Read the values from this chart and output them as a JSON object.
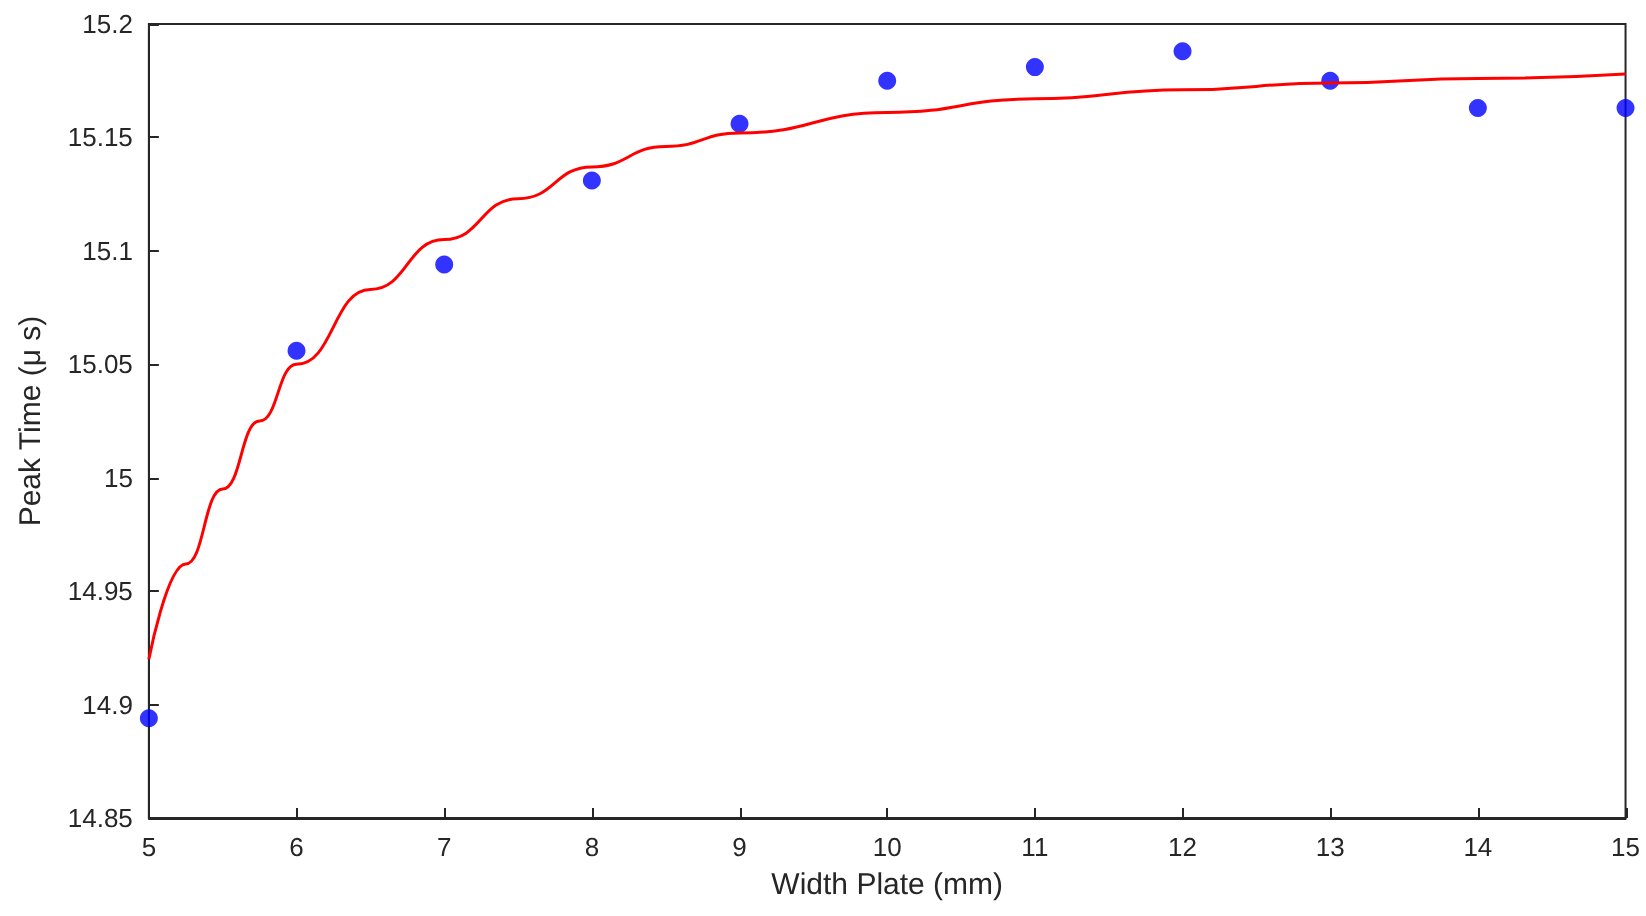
{
  "chart_data": {
    "type": "scatter",
    "xlabel": "Width Plate (mm)",
    "ylabel": "Peak Time (μ s)",
    "xlim": [
      5,
      15
    ],
    "xticks": [
      5,
      6,
      7,
      8,
      9,
      10,
      11,
      12,
      13,
      14,
      15
    ],
    "ylim": [
      14.85,
      15.2
    ],
    "yticks": [
      14.85,
      14.9,
      14.95,
      15,
      15.05,
      15.1,
      15.15,
      15.2
    ],
    "grid": false,
    "series": [
      {
        "marker": "circle",
        "color": "#0000ff",
        "x": [
          5,
          6,
          7,
          8,
          9,
          10,
          11,
          12,
          13,
          14,
          15
        ],
        "values": [
          14.894,
          15.056,
          15.094,
          15.131,
          15.156,
          15.175,
          15.181,
          15.188,
          15.175,
          15.163,
          15.163
        ]
      },
      {
        "type": "line",
        "marker": "none",
        "line_style": "solid",
        "color": "#ff0000",
        "x": [
          5,
          5.25,
          5.5,
          5.75,
          6,
          6.5,
          7,
          7.5,
          8,
          8.5,
          9,
          10,
          11,
          12,
          13,
          14,
          15
        ],
        "values": [
          14.92,
          14.962,
          14.995,
          15.025,
          15.05,
          15.083,
          15.105,
          15.123,
          15.137,
          15.146,
          15.152,
          15.161,
          15.167,
          15.171,
          15.174,
          15.176,
          15.178
        ]
      }
    ]
  }
}
